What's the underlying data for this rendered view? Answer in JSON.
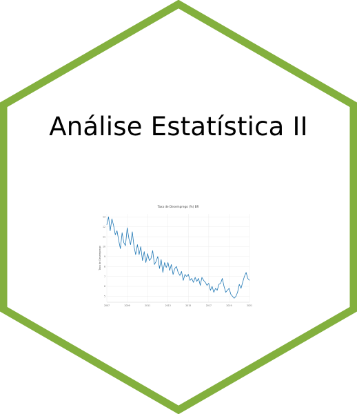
{
  "hexagon": {
    "stroke_color": "#83b03e",
    "fill_color": "#ffffff"
  },
  "title": "Análise Estatística II",
  "chart_data": {
    "type": "line",
    "title": "Taxa de Desemprego (%) BR",
    "xlabel": "",
    "ylabel": "Taxa de Desemprego",
    "line_color": "#1f77b4",
    "grid": true,
    "x_ticks": [
      "2007",
      "2009",
      "2011",
      "2013",
      "2015",
      "2017",
      "2019",
      "2021"
    ],
    "y_ticks": [
      "5",
      "6",
      "7",
      "8",
      "9",
      "10",
      "11",
      "12",
      "13"
    ],
    "xlim": [
      2007,
      2021
    ],
    "ylim": [
      4.4,
      13.3
    ],
    "series": [
      {
        "x": [
          2007.0,
          2007.17,
          2007.33,
          2007.5,
          2007.67,
          2007.83,
          2008.0,
          2008.17,
          2008.33,
          2008.5,
          2008.67,
          2008.83,
          2009.0,
          2009.17,
          2009.33,
          2009.5,
          2009.67,
          2009.83,
          2010.0,
          2010.17,
          2010.33,
          2010.5,
          2010.67,
          2010.83,
          2011.0,
          2011.17,
          2011.33,
          2011.5,
          2011.67,
          2011.83,
          2012.0,
          2012.17,
          2012.33,
          2012.5,
          2012.67,
          2012.83,
          2013.0,
          2013.17,
          2013.33,
          2013.5,
          2013.67,
          2013.83,
          2014.0,
          2014.17,
          2014.33,
          2014.5,
          2014.67,
          2014.83,
          2015.0,
          2015.17,
          2015.33,
          2015.5,
          2015.67,
          2015.83,
          2016.0,
          2016.17,
          2016.33,
          2016.5,
          2016.67,
          2016.83,
          2017.0,
          2017.17,
          2017.33,
          2017.5,
          2017.67,
          2017.83,
          2018.0,
          2018.17,
          2018.33,
          2018.5,
          2018.67,
          2018.83,
          2019.0,
          2019.17,
          2019.33,
          2019.5,
          2019.67,
          2019.83,
          2020.0,
          2020.17,
          2020.33,
          2020.5,
          2020.67,
          2020.83,
          2021.0
        ],
        "y": [
          12.2,
          13.0,
          11.6,
          12.8,
          12.1,
          11.2,
          11.6,
          10.6,
          9.8,
          11.4,
          10.4,
          10.1,
          11.9,
          10.8,
          10.2,
          11.5,
          10.0,
          9.2,
          10.2,
          9.2,
          10.0,
          8.6,
          9.5,
          8.4,
          9.3,
          8.6,
          8.8,
          9.6,
          8.2,
          8.5,
          9.0,
          7.8,
          8.7,
          7.4,
          8.4,
          7.9,
          8.4,
          7.6,
          8.2,
          7.2,
          7.8,
          8.0,
          7.4,
          7.1,
          7.5,
          6.6,
          7.2,
          7.0,
          7.2,
          6.6,
          6.8,
          6.4,
          6.9,
          6.5,
          6.8,
          6.1,
          6.9,
          6.6,
          6.4,
          6.1,
          6.3,
          5.6,
          6.0,
          5.4,
          5.8,
          5.6,
          6.2,
          6.3,
          6.8,
          6.0,
          5.4,
          5.6,
          5.8,
          5.2,
          5.0,
          4.8,
          5.0,
          5.4,
          6.2,
          5.8,
          6.4,
          7.0,
          7.4,
          6.8,
          6.6
        ]
      }
    ]
  }
}
